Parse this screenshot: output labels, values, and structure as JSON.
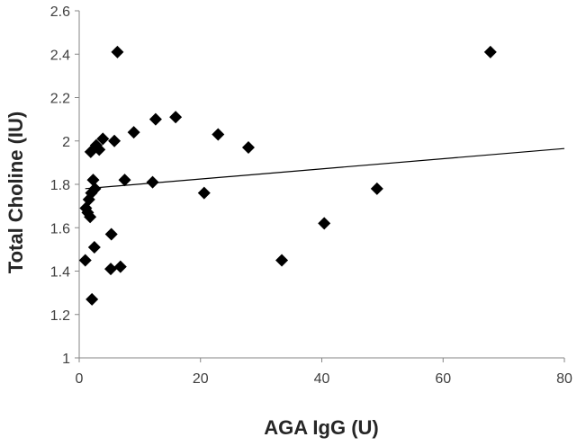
{
  "chart_data": {
    "type": "scatter",
    "title": "",
    "xlabel": "AGA IgG (U)",
    "ylabel": "Total Choline (IU)",
    "xlim": [
      0,
      80
    ],
    "ylim": [
      1,
      2.6
    ],
    "xticks": [
      0,
      20,
      40,
      60,
      80
    ],
    "yticks": [
      1,
      1.2,
      1.4,
      1.6,
      1.8,
      2,
      2.2,
      2.4,
      2.6
    ],
    "xtick_labels": [
      "0",
      "20",
      "40",
      "60",
      "80"
    ],
    "ytick_labels": [
      "1",
      "1.2",
      "1.4",
      "1.6",
      "1.8",
      "2",
      "2.2",
      "2.4",
      "2.6"
    ],
    "grid": false,
    "legend": false,
    "marker": "diamond",
    "marker_color": "#000000",
    "series": [
      {
        "points": [
          {
            "x": 6.3,
            "y": 2.41
          },
          {
            "x": 67.8,
            "y": 2.41
          },
          {
            "x": 15.9,
            "y": 2.11
          },
          {
            "x": 12.6,
            "y": 2.1
          },
          {
            "x": 9.0,
            "y": 2.04
          },
          {
            "x": 22.9,
            "y": 2.03
          },
          {
            "x": 3.9,
            "y": 2.01
          },
          {
            "x": 5.8,
            "y": 2.0
          },
          {
            "x": 2.8,
            "y": 1.98
          },
          {
            "x": 1.9,
            "y": 1.95
          },
          {
            "x": 3.3,
            "y": 1.96
          },
          {
            "x": 27.9,
            "y": 1.97
          },
          {
            "x": 2.3,
            "y": 1.82
          },
          {
            "x": 7.5,
            "y": 1.82
          },
          {
            "x": 12.1,
            "y": 1.81
          },
          {
            "x": 2.6,
            "y": 1.78
          },
          {
            "x": 49.1,
            "y": 1.78
          },
          {
            "x": 2.0,
            "y": 1.76
          },
          {
            "x": 20.6,
            "y": 1.76
          },
          {
            "x": 1.6,
            "y": 1.73
          },
          {
            "x": 1.1,
            "y": 1.69
          },
          {
            "x": 1.4,
            "y": 1.67
          },
          {
            "x": 1.8,
            "y": 1.65
          },
          {
            "x": 40.4,
            "y": 1.62
          },
          {
            "x": 5.3,
            "y": 1.57
          },
          {
            "x": 2.5,
            "y": 1.51
          },
          {
            "x": 1.0,
            "y": 1.45
          },
          {
            "x": 33.4,
            "y": 1.45
          },
          {
            "x": 6.8,
            "y": 1.42
          },
          {
            "x": 5.2,
            "y": 1.41
          },
          {
            "x": 2.1,
            "y": 1.27
          }
        ]
      }
    ],
    "trendline": {
      "type": "linear",
      "x_range": [
        1,
        80
      ],
      "y_start": 1.78,
      "y_end": 1.965,
      "color": "#000000"
    }
  }
}
